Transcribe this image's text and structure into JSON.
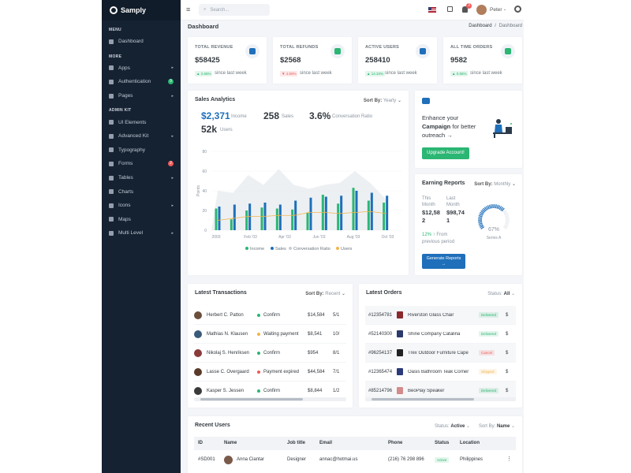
{
  "brand": "Samply",
  "sidebar": {
    "menu_title": "MENU",
    "more_title": "MORE",
    "admin_title": "ADMIN KIT",
    "dashboard": "Dashboard",
    "more_items": [
      {
        "label": "Apps",
        "icon": "grid-icon",
        "arrow": "▸"
      },
      {
        "label": "Authentication",
        "icon": "user-icon",
        "badge": "9",
        "badge_color": "#2bb673"
      },
      {
        "label": "Pages",
        "icon": "file-icon",
        "arrow": "▸"
      }
    ],
    "admin_items": [
      {
        "label": "UI Elements",
        "icon": "briefcase-icon"
      },
      {
        "label": "Advanced Kit",
        "icon": "half-circle-icon",
        "arrow": "▸"
      },
      {
        "label": "Typography",
        "icon": "text-icon"
      },
      {
        "label": "Forms",
        "icon": "pen-icon",
        "badge": "2",
        "badge_color": "#f05a5a"
      },
      {
        "label": "Tables",
        "icon": "table-icon",
        "arrow": "▸"
      },
      {
        "label": "Charts",
        "icon": "chart-icon"
      },
      {
        "label": "Icons",
        "icon": "layers-icon",
        "arrow": "▸"
      },
      {
        "label": "Maps",
        "icon": "map-icon"
      },
      {
        "label": "Multi Level",
        "icon": "share-icon",
        "arrow": "▸"
      }
    ]
  },
  "topbar": {
    "search_placeholder": "Search...",
    "notif_count": "3",
    "user_name": "Peter"
  },
  "page": {
    "title": "Dashboard",
    "breadcrumb_root": "Dashboard",
    "breadcrumb_sep": "/",
    "breadcrumb_current": "Dashboard"
  },
  "stats": [
    {
      "title": "TOTAL REVENUE",
      "value": "$58425",
      "change": "2.65%",
      "dir": "up",
      "since": "since last week",
      "icon_color": "#1f6fba"
    },
    {
      "title": "TOTAL REFUNDS",
      "value": "$2568",
      "change": "4.50%",
      "dir": "down",
      "since": "since last week",
      "icon_color": "#2bb673"
    },
    {
      "title": "ACTIVE USERS",
      "value": "258410",
      "change": "14.33%",
      "dir": "up",
      "since": "since last week",
      "icon_color": "#1f6fba"
    },
    {
      "title": "ALL TIME ORDERS",
      "value": "9582",
      "change": "0.55%",
      "dir": "up",
      "since": "since last week",
      "icon_color": "#2bb673"
    }
  ],
  "sales": {
    "title": "Sales Analytics",
    "sort_label": "Sort By:",
    "sort_value": "Yearly",
    "income": "$2,371",
    "income_label": "Income",
    "sales_count": "258",
    "sales_label": "Sales",
    "ratio": "3.6%",
    "ratio_label": "Conversation Ratio",
    "users_count": "52k",
    "users_label": "Users"
  },
  "chart_data": {
    "type": "bar",
    "ylabel": "Points",
    "ylim": [
      0,
      80
    ],
    "yticks": [
      "0",
      "20",
      "40",
      "60",
      "80"
    ],
    "x_labels": [
      "2003",
      "Feb '03",
      "Apr '03",
      "Jun '03",
      "Aug '03",
      "Oct '03"
    ],
    "series": [
      {
        "name": "Income",
        "color": "#2bb673",
        "values": [
          22,
          11,
          20,
          23,
          22,
          21,
          18,
          36,
          27,
          43,
          30,
          28
        ]
      },
      {
        "name": "Sales",
        "color": "#1f6fba",
        "values": [
          24,
          26,
          27,
          28,
          26,
          30,
          33,
          34,
          35,
          40,
          38,
          35
        ]
      },
      {
        "name": "Conversation Ratio",
        "color": "#dfe3ea",
        "values": [
          40,
          38,
          56,
          46,
          62,
          46,
          42,
          46,
          48,
          60,
          48,
          32
        ]
      },
      {
        "name": "Users",
        "color": "#f1b44c",
        "values": [
          10,
          12,
          14,
          14,
          15,
          15,
          18,
          18,
          17,
          18,
          19,
          17
        ]
      }
    ]
  },
  "promo": {
    "text1": "Enhance your",
    "text_bold": "Campaign",
    "text2": "for better outreach",
    "arrow": "→",
    "button": "Upgrade Account!"
  },
  "earning": {
    "title": "Earning Reports",
    "sort_label": "Sort By:",
    "sort_value": "Monthly",
    "this_month_label": "This Month",
    "this_month_value": "$12,582",
    "last_month_label": "Last Month",
    "last_month_value": "$98,741",
    "change": "12%",
    "change_text": "From previous period",
    "gauge_value": "67%",
    "gauge_fraction": 0.67,
    "gauge_label": "Series A",
    "button": "Generate Reports",
    "button_arrow": "→"
  },
  "transactions": {
    "title": "Latest Transactions",
    "sort_label": "Sort By:",
    "sort_value": "Recent",
    "rows": [
      {
        "name": "Herbert C. Patton",
        "status": "Confirm",
        "status_color": "#2bb673",
        "amount": "$14,584",
        "extra": "5/1"
      },
      {
        "name": "Mathias N. Klausen",
        "status": "Waiting payment",
        "status_color": "#f1b44c",
        "amount": "$8,541",
        "extra": "10/"
      },
      {
        "name": "Nikolaj S. Henriksen",
        "status": "Confirm",
        "status_color": "#2bb673",
        "amount": "$954",
        "extra": "8/1"
      },
      {
        "name": "Lasse C. Overgaard",
        "status": "Payment expired",
        "status_color": "#f05a5a",
        "amount": "$44,584",
        "extra": "7/1"
      },
      {
        "name": "Kasper S. Jessen",
        "status": "Confirm",
        "status_color": "#2bb673",
        "amount": "$8,844",
        "extra": "1/2"
      }
    ]
  },
  "orders": {
    "title": "Latest Orders",
    "status_label": "Status:",
    "status_value": "All",
    "rows": [
      {
        "id": "#12354781",
        "product": "Riverston Glass Chair",
        "status": "Delivered",
        "color": "#2bb673",
        "price": "$"
      },
      {
        "id": "#52140300",
        "product": "Shine Company Catalina",
        "status": "Delivered",
        "color": "#2bb673",
        "price": "$"
      },
      {
        "id": "#96254137",
        "product": "Trex Outdoor Furniture Cape",
        "status": "Cancel",
        "color": "#f05a5a",
        "price": "$"
      },
      {
        "id": "#12365474",
        "product": "Oasis Bathroom Teak Corner",
        "status": "Shipped",
        "color": "#f1b44c",
        "price": "$"
      },
      {
        "id": "#85214796",
        "product": "BeoPlay Speaker",
        "status": "Delivered",
        "color": "#2bb673",
        "price": "$"
      }
    ]
  },
  "users": {
    "title": "Recent Users",
    "status_label": "Status:",
    "status_value": "Active",
    "sort_label": "Sort By:",
    "sort_value": "Name",
    "headers": [
      "ID",
      "Name",
      "Job title",
      "Email",
      "Phone",
      "Status",
      "Location"
    ],
    "rows": [
      {
        "id": "#SD001",
        "name": "Anna Ciantar",
        "job": "Designer",
        "email": "annac@hotmai.us",
        "phone": "(216) 76 298 896",
        "status": "Active",
        "location": "Philippines"
      }
    ]
  }
}
